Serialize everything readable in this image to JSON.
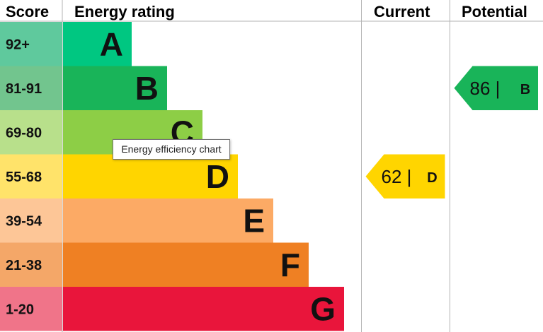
{
  "headers": {
    "score": "Score",
    "rating": "Energy rating",
    "current": "Current",
    "potential": "Potential"
  },
  "tooltip": "Energy efficiency chart",
  "chart_data": {
    "type": "bar",
    "bands": [
      {
        "letter": "A",
        "range": "92+",
        "color": "#00c781",
        "score_color": "#5fc99d"
      },
      {
        "letter": "B",
        "range": "81-91",
        "color": "#19b459",
        "score_color": "#72c58e"
      },
      {
        "letter": "C",
        "range": "69-80",
        "color": "#8dce46",
        "score_color": "#b8e08b"
      },
      {
        "letter": "D",
        "range": "55-68",
        "color": "#ffd500",
        "score_color": "#ffe36a"
      },
      {
        "letter": "E",
        "range": "39-54",
        "color": "#fcaa65",
        "score_color": "#fdc697"
      },
      {
        "letter": "F",
        "range": "21-38",
        "color": "#ef8023",
        "score_color": "#f4a768"
      },
      {
        "letter": "G",
        "range": "1-20",
        "color": "#e9153b",
        "score_color": "#f07489"
      }
    ],
    "current": {
      "value": "62",
      "letter": "D",
      "color": "#ffd500"
    },
    "potential": {
      "value": "86",
      "letter": "B",
      "color": "#19b459"
    }
  }
}
